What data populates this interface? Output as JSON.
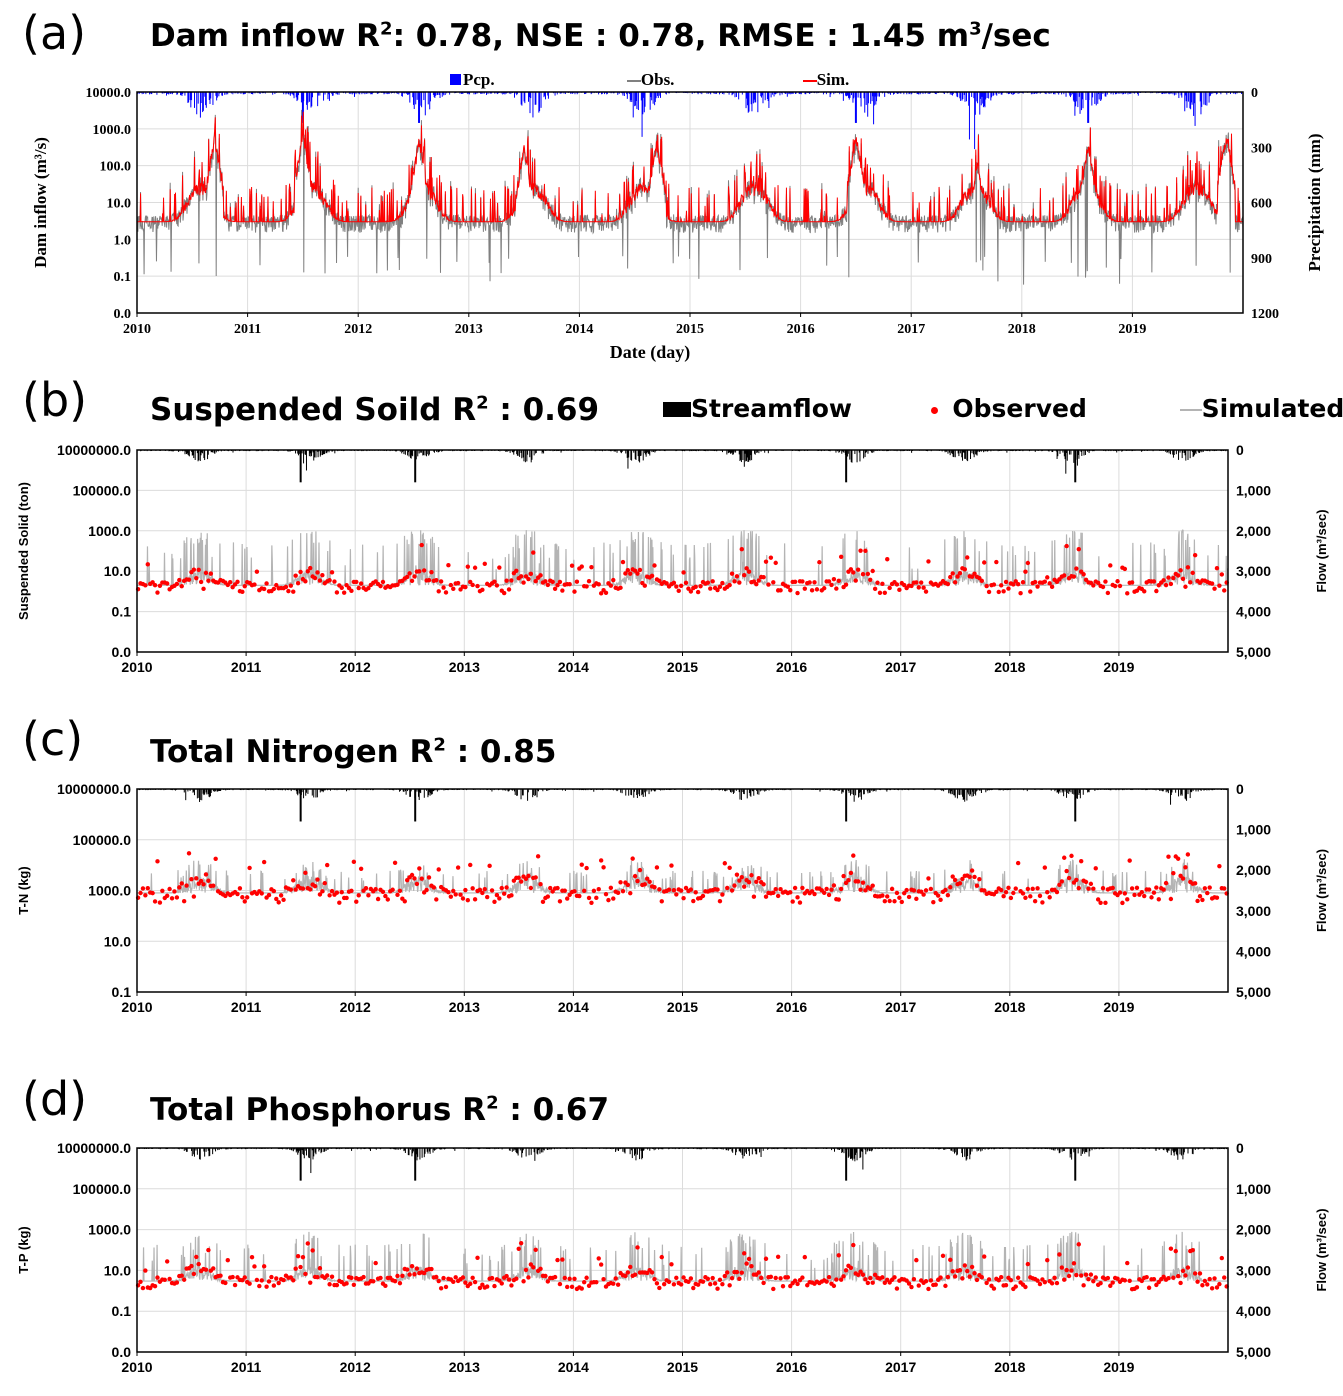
{
  "panels": [
    {
      "id": "a",
      "letter": "(a)",
      "title_main": "Dam inflow R",
      "title_sup": "2",
      "title_rest": ": 0.78, NSE : 0.78, RMSE : 1.45 m",
      "title_sup2": "3",
      "title_end": "/sec",
      "legend": [
        "Pcp.",
        "Obs.",
        "Sim."
      ]
    },
    {
      "id": "b",
      "letter": "(b)",
      "title_main": "Suspended Soild R",
      "title_sup": "2",
      "title_rest": " : 0.69",
      "legend": [
        "Streamflow",
        "Observed",
        "Simulated"
      ]
    },
    {
      "id": "c",
      "letter": "(c)",
      "title_main": "Total Nitrogen R",
      "title_sup": "2",
      "title_rest": " : 0.85"
    },
    {
      "id": "d",
      "letter": "(d)",
      "title_main": "Total Phosphorus R",
      "title_sup": "2",
      "title_rest": " : 0.67"
    }
  ],
  "colors": {
    "precip": "#0000ff",
    "obs_flow": "#808080",
    "sim_flow": "#ff0000",
    "streamflow": "#000000",
    "observed_pts": "#ff0000",
    "simulated_line": "#b4b4b4"
  },
  "chart_data": [
    {
      "type": "line",
      "panel": "a",
      "xlabel": "Date (day)",
      "ylabel": "Dam inflow (m³/s)",
      "y2label": "Precipitation (mm)",
      "yscale": "log",
      "xlim": [
        2010,
        2020
      ],
      "x_ticks": [
        "2010",
        "2011",
        "2012",
        "2013",
        "2014",
        "2015",
        "2016",
        "2017",
        "2018",
        "2019"
      ],
      "y_ticks": [
        "10000.0",
        "1000.0",
        "100.0",
        "10.0",
        "1.0",
        "0.1",
        "0.0"
      ],
      "y_tick_values": [
        10000,
        1000,
        100,
        10,
        1,
        0.1,
        0.01
      ],
      "y2_ticks": [
        "0",
        "300",
        "600",
        "900",
        "1200"
      ],
      "y2_reversed": true,
      "grid": true,
      "legend_position": "top-center",
      "series": [
        {
          "name": "Pcp.",
          "kind": "bars-from-top"
        },
        {
          "name": "Obs.",
          "kind": "line"
        },
        {
          "name": "Sim.",
          "kind": "line"
        }
      ],
      "peaks": [
        {
          "x": 2010.7,
          "sim": 700
        },
        {
          "x": 2011.5,
          "sim": 900
        },
        {
          "x": 2012.55,
          "sim": 600
        },
        {
          "x": 2013.5,
          "sim": 400
        },
        {
          "x": 2014.7,
          "sim": 500
        },
        {
          "x": 2016.5,
          "sim": 800
        },
        {
          "x": 2017.6,
          "sim": 150
        },
        {
          "x": 2018.6,
          "sim": 450
        },
        {
          "x": 2019.85,
          "sim": 900
        }
      ]
    },
    {
      "type": "scatter",
      "panel": "b",
      "ylabel": "Suspended Solid (ton)",
      "y2label": "Flow (m³/sec)",
      "yscale": "log",
      "xlim": [
        2010,
        2020
      ],
      "x_ticks": [
        "2010",
        "2011",
        "2012",
        "2013",
        "2014",
        "2015",
        "2016",
        "2017",
        "2018",
        "2019"
      ],
      "y_ticks": [
        "10000000.0",
        "100000.0",
        "1000.0",
        "10.0",
        "0.1",
        "0.0"
      ],
      "y_tick_values": [
        10000000,
        100000,
        1000,
        10,
        0.1,
        0.001
      ],
      "y2_ticks": [
        "0",
        "1,000",
        "2,000",
        "3,000",
        "4,000",
        "5,000"
      ],
      "y2_reversed": true,
      "grid": true,
      "legend_position": "top-right",
      "series": [
        {
          "name": "Streamflow"
        },
        {
          "name": "Observed"
        },
        {
          "name": "Simulated"
        }
      ],
      "base_level": 2,
      "peak_level": 3000
    },
    {
      "type": "scatter",
      "panel": "c",
      "ylabel": "T-N (kg)",
      "y2label": "Flow (m³/sec)",
      "yscale": "log",
      "xlim": [
        2010,
        2020
      ],
      "x_ticks": [
        "2010",
        "2011",
        "2012",
        "2013",
        "2014",
        "2015",
        "2016",
        "2017",
        "2018",
        "2019"
      ],
      "y_ticks": [
        "10000000.0",
        "100000.0",
        "1000.0",
        "10.0",
        "0.1"
      ],
      "y_tick_values": [
        10000000,
        100000,
        1000,
        10,
        0.1
      ],
      "y2_ticks": [
        "0",
        "1,000",
        "2,000",
        "3,000",
        "4,000",
        "5,000"
      ],
      "y2_reversed": true,
      "grid": true,
      "series": [
        {
          "name": "Streamflow"
        },
        {
          "name": "Observed"
        },
        {
          "name": "Simulated"
        }
      ],
      "base_level": 800,
      "peak_level": 40000
    },
    {
      "type": "scatter",
      "panel": "d",
      "ylabel": "T-P (kg)",
      "y2label": "Flow (m³/sec)",
      "yscale": "log",
      "xlim": [
        2010,
        2020
      ],
      "x_ticks": [
        "2010",
        "2011",
        "2012",
        "2013",
        "2014",
        "2015",
        "2016",
        "2017",
        "2018",
        "2019"
      ],
      "y_ticks": [
        "10000000.0",
        "100000.0",
        "1000.0",
        "10.0",
        "0.1",
        "0.0"
      ],
      "y_tick_values": [
        10000000,
        100000,
        1000,
        10,
        0.1,
        0.001
      ],
      "y2_ticks": [
        "0",
        "1,000",
        "2,000",
        "3,000",
        "4,000",
        "5,000"
      ],
      "y2_reversed": true,
      "grid": true,
      "series": [
        {
          "name": "Streamflow"
        },
        {
          "name": "Observed"
        },
        {
          "name": "Simulated"
        }
      ],
      "base_level": 3,
      "peak_level": 2000
    }
  ]
}
